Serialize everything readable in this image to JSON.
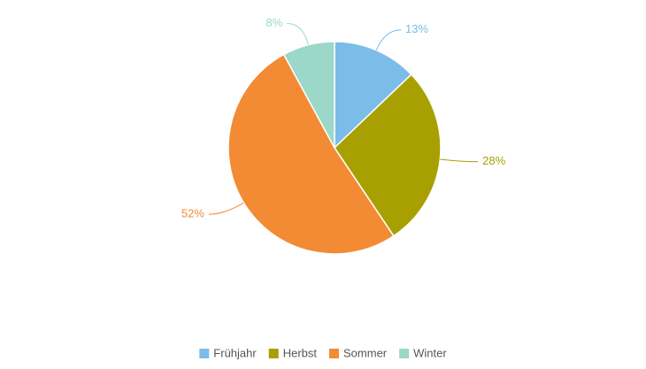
{
  "chart_data": {
    "type": "pie",
    "categories": [
      "Frühjahr",
      "Herbst",
      "Sommer",
      "Winter"
    ],
    "values": [
      13,
      28,
      52,
      8
    ],
    "value_labels": [
      "13%",
      "28%",
      "52%",
      "8%"
    ],
    "colors": [
      "#7cbce9",
      "#a8a000",
      "#f28b33",
      "#9bd8c9"
    ],
    "legend": "bottom"
  }
}
